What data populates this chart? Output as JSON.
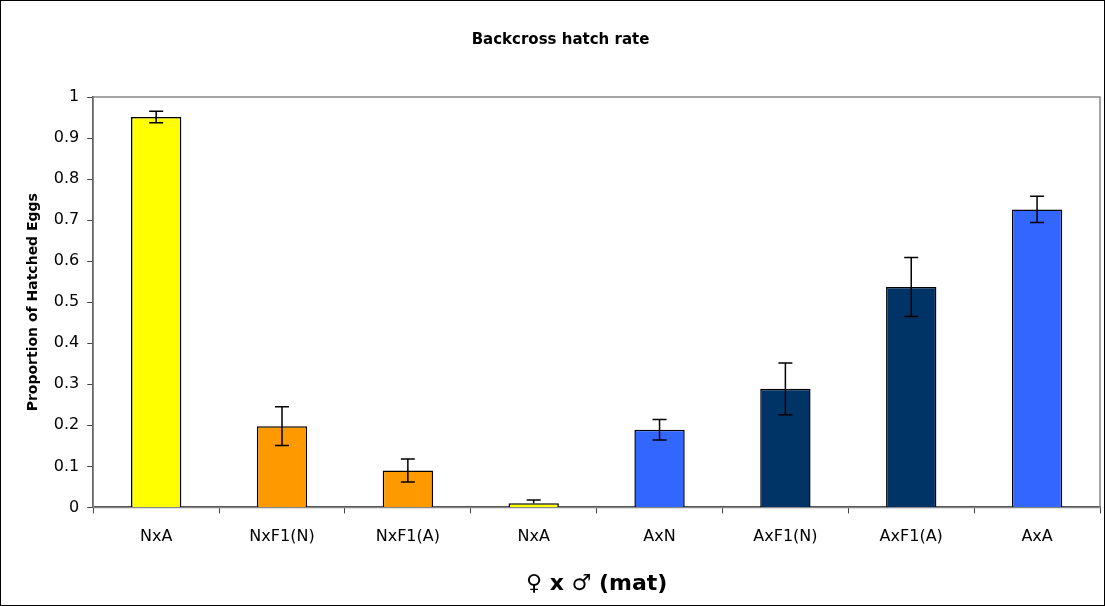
{
  "chart_data": {
    "type": "bar",
    "title": "Backcross hatch rate",
    "xlabel": "♀ x ♂ (mat)",
    "ylabel": "Proportion of Hatched Eggs",
    "categories": [
      "NxA",
      "NxF1(N)",
      "NxF1(A)",
      "NxA",
      "AxN",
      "AxF1(N)",
      "AxF1(A)",
      "AxA"
    ],
    "values": [
      0.951,
      0.198,
      0.09,
      0.01,
      0.189,
      0.289,
      0.537,
      0.726
    ],
    "colors": [
      "#ffff00",
      "#ff9900",
      "#ff9900",
      "#ffff00",
      "#3366ff",
      "#003366",
      "#003366",
      "#3366ff"
    ],
    "errors": [
      0.014,
      0.047,
      0.028,
      [
        0.01,
        0.018
      ],
      0.025,
      0.063,
      0.072,
      0.032
    ],
    "ylim": [
      0,
      1
    ],
    "yticks": [
      0,
      0.1,
      0.2,
      0.3,
      0.4,
      0.5,
      0.6,
      0.7,
      0.8,
      0.9,
      1
    ],
    "grid": false,
    "legend": false
  }
}
